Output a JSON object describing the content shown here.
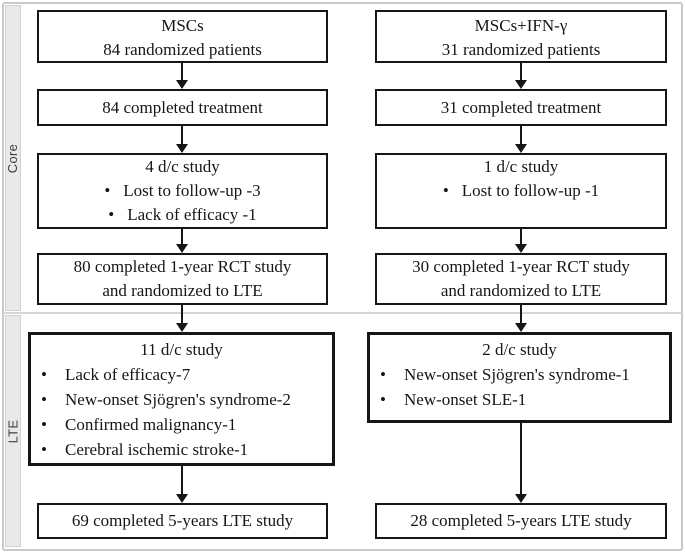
{
  "sections": {
    "core": {
      "label": "Core"
    },
    "lte": {
      "label": "LTE"
    }
  },
  "glyphs": {
    "bullet": "•"
  },
  "colors": {
    "box_border": "#161616",
    "text": "#161616",
    "frame_border": "#c9c9c9",
    "sidebar_bg": "#e9e9e9",
    "divider": "#d6d6d6",
    "background": "#ffffff"
  },
  "columns": {
    "left": {
      "enrollment": {
        "line1": "MSCs",
        "line2": "84 randomized patients"
      },
      "completed_treatment": "84 completed treatment",
      "dc_core": {
        "title": "4 d/c study",
        "bullets": [
          "Lost to follow-up -3",
          "Lack of efficacy -1"
        ]
      },
      "completed_rct": {
        "line1": "80 completed 1-year RCT study",
        "line2": "and randomized to LTE"
      },
      "dc_lte": {
        "title": "11 d/c study",
        "bullets": [
          "Lack of efficacy-7",
          "New-onset Sjögren's syndrome-2",
          "Confirmed malignancy-1",
          "Cerebral ischemic stroke-1"
        ]
      },
      "completed_lte": "69 completed 5-years LTE study"
    },
    "right": {
      "enrollment": {
        "line1": "MSCs+IFN-γ",
        "line2": "31 randomized patients"
      },
      "completed_treatment": "31 completed treatment",
      "dc_core": {
        "title": "1 d/c study",
        "bullets": [
          "Lost to follow-up -1"
        ]
      },
      "completed_rct": {
        "line1": "30 completed 1-year RCT study",
        "line2": "and randomized to LTE"
      },
      "dc_lte": {
        "title": "2 d/c study",
        "bullets": [
          "New-onset Sjögren's syndrome-1",
          "New-onset SLE-1"
        ]
      },
      "completed_lte": "28 completed 5-years LTE study"
    }
  }
}
